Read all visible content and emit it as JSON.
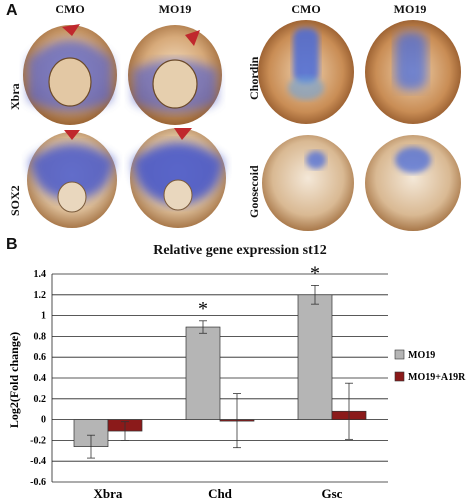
{
  "figure": {
    "panel_a": {
      "letter": "A",
      "columns": [
        "CMO",
        "MO19",
        "CMO",
        "MO19"
      ],
      "rows_left": [
        "Xbra",
        "SOX2"
      ],
      "rows_right": [
        "Chordin",
        "Goosecoid"
      ]
    },
    "panel_b": {
      "letter": "B"
    }
  },
  "chart_data": {
    "type": "bar",
    "title": "Relative gene expression st12",
    "xlabel": "",
    "ylabel": "Log2(Fold change)",
    "categories": [
      "Xbra",
      "Chd",
      "Gsc"
    ],
    "ylim": [
      -0.6,
      1.4
    ],
    "yticks": [
      "1.4",
      "1.2",
      "1",
      "0.8",
      "0.6",
      "0.4",
      "0.2",
      "0",
      "-0.2",
      "-0.4",
      "-0.6"
    ],
    "series": [
      {
        "name": "MO19",
        "color": "#b5b5b5",
        "values": [
          -0.26,
          0.89,
          1.2
        ],
        "errors": [
          0.11,
          0.06,
          0.09
        ]
      },
      {
        "name": "MO19+A19R",
        "color": "#8b1a1a",
        "values": [
          -0.11,
          -0.01,
          0.08
        ],
        "errors": [
          0.09,
          0.26,
          0.27
        ]
      }
    ],
    "annotations": [
      "*",
      "*"
    ],
    "grid": true,
    "legend_position": "right"
  },
  "colors": {
    "embryo_brown": "#b07840",
    "stain_blue": "#4a58c8",
    "arrow_red": "#c0282d"
  }
}
